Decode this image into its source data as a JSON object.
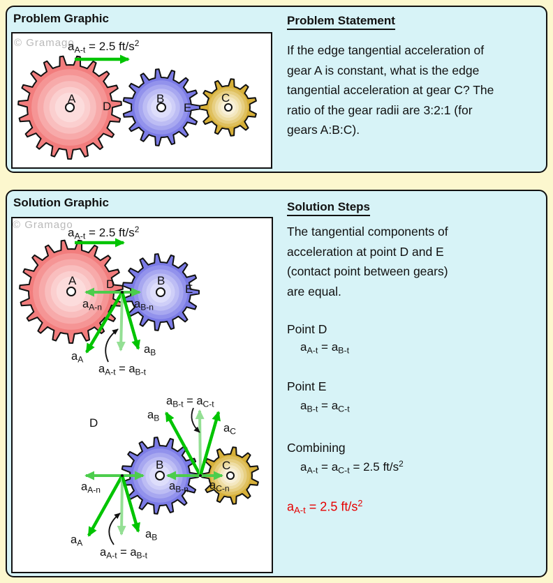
{
  "colors": {
    "page_bg": "#FCF7CE",
    "panel_bg": "#D7F3F7",
    "panel_border": "#111111",
    "box_bg": "#FFFFFF",
    "text": "#111111",
    "answer_red": "#E60000",
    "watermark_gray": "#B9B9B9",
    "arrow_green_dark": "#00C400",
    "arrow_green_mid": "#4CCD4C",
    "arrow_green_pale": "#94DF94",
    "gear_palettes": {
      "red": [
        "#F27D7D",
        "#F59595",
        "#F7AAAA",
        "#F9BEBE",
        "#FBCFCF",
        "#FCDCDC"
      ],
      "blue": [
        "#7B7BE6",
        "#9292EC",
        "#A8A8F0",
        "#BDBDF4",
        "#CFCFF8",
        "#DEDEFB"
      ],
      "gold": [
        "#D7B039",
        "#DFC05E",
        "#E7CF82",
        "#EEDDA4",
        "#F4E8C1",
        "#F8F0D8"
      ]
    }
  },
  "problem": {
    "graphic_title": "Problem Graphic",
    "watermark": "© Gramago",
    "accel_label": "a_{A-t} = 2.5 ft/s^{2}",
    "labels": {
      "A": "A",
      "B": "B",
      "C": "C",
      "D": "D",
      "E": "E"
    },
    "statement": {
      "title": "Problem Statement",
      "lines": [
        "If the edge tangential acceleration of",
        "gear A is constant, what is the edge",
        "tangential acceleration at gear C? The",
        "ratio of the gear radii are 3:2:1 (for",
        "gears A:B:C)."
      ]
    }
  },
  "solution": {
    "graphic_title": "Solution Graphic",
    "watermark": "© Gramago",
    "accel_label": "a_{A-t} = 2.5 ft/s^{2}",
    "diagram1": {
      "A": "A",
      "B": "B",
      "D": "D",
      "E": "E",
      "a_A_n": "a_{A-n}",
      "a_B_n": "a_{B-n}",
      "a_A": "a_{A}",
      "a_B": "a_{B}",
      "eq": "a_{A-t} = a_{B-t}"
    },
    "diagram2": {
      "B": "B",
      "C": "C",
      "D": "D",
      "a_A_n": "a_{A-n}",
      "a_B_n": "a_{B-n}",
      "a_C_n": "a_{C-n}",
      "a_A": "a_{A}",
      "a_B_top": "a_{B}",
      "a_B_bot": "a_{B}",
      "a_C": "a_{C}",
      "eq_top": "a_{B-t} = a_{C-t}",
      "eq_bot": "a_{A-t} = a_{B-t}"
    },
    "steps": {
      "title": "Solution Steps",
      "intro_lines": [
        "The tangential components of",
        "acceleration at point D and E",
        "(contact point between gears)",
        "are equal."
      ],
      "items": [
        {
          "heading": "Point D",
          "formula": "a_{A-t} = a_{B-t}"
        },
        {
          "heading": "Point E",
          "formula": "a_{B-t} = a_{C-t}"
        },
        {
          "heading": "Combining",
          "formula": "a_{A-t} = a_{C-t} = 2.5 ft/s^{2}"
        }
      ],
      "answer": "a_{A-t} = 2.5 ft/s^{2}"
    }
  }
}
